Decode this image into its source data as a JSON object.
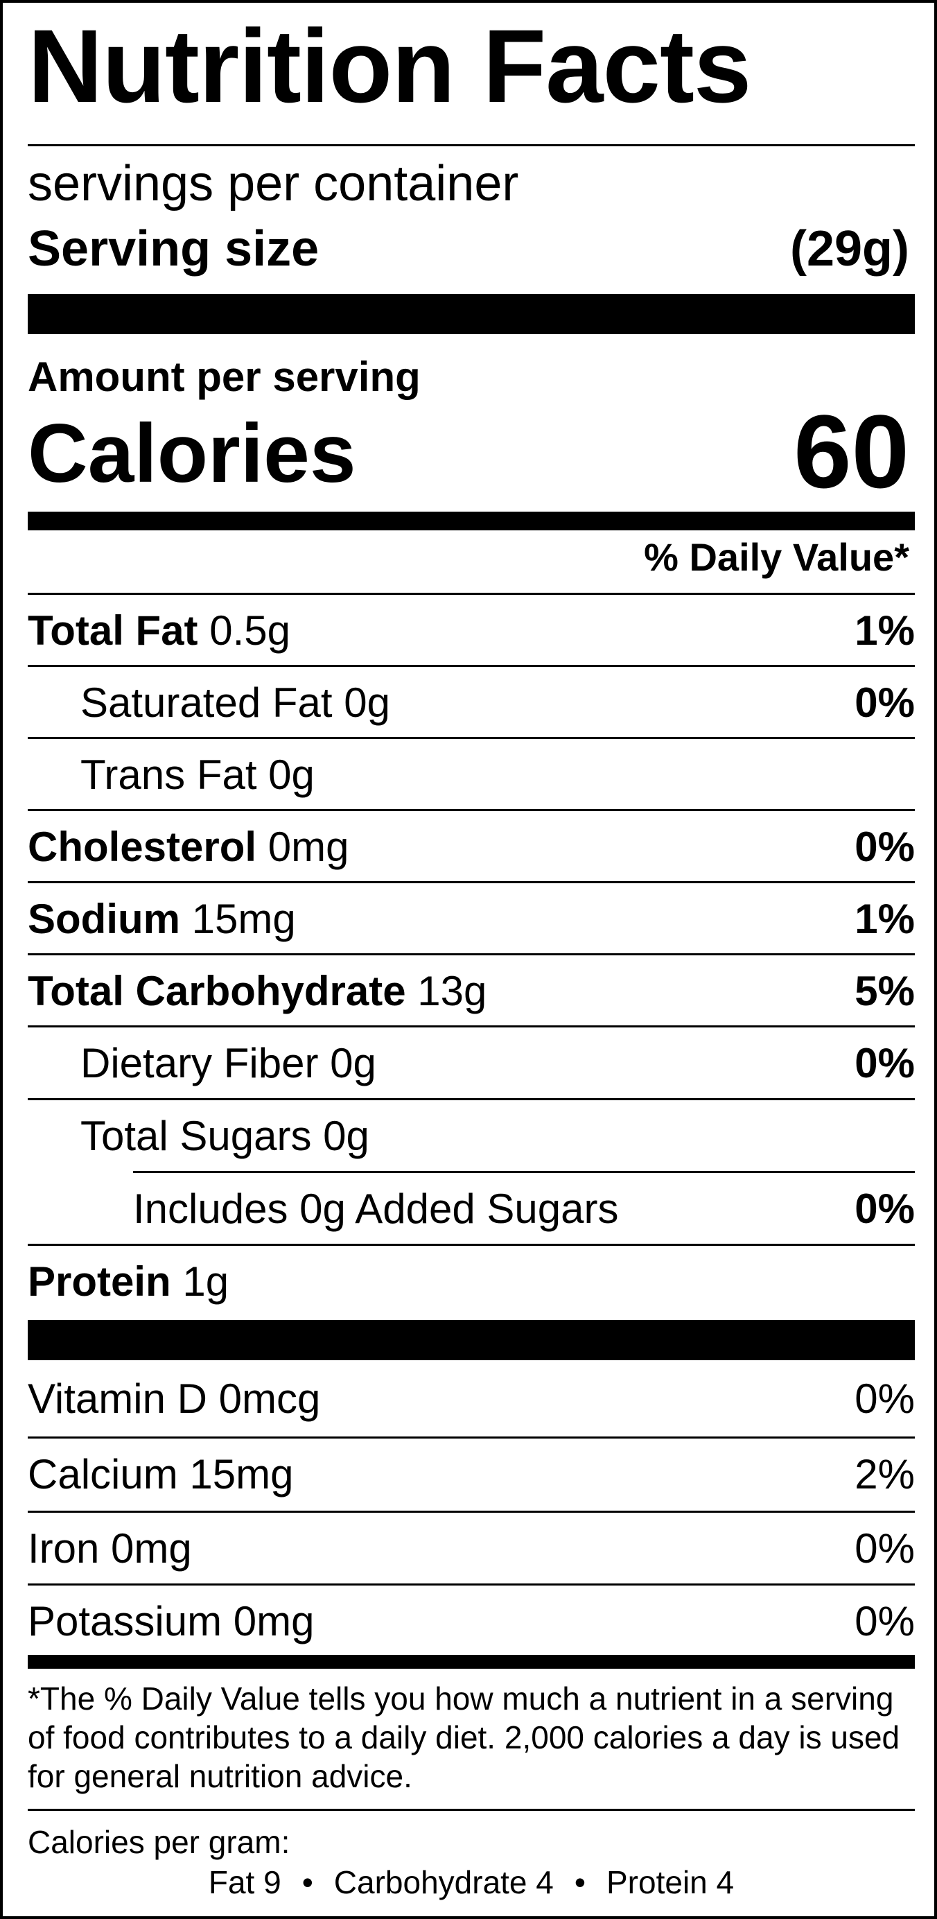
{
  "title": "Nutrition Facts",
  "servings_per_container": "servings per container",
  "serving_size": {
    "label": "Serving size",
    "value": "(29g)"
  },
  "amount_per_serving": "Amount per serving",
  "calories": {
    "label": "Calories",
    "value": "60"
  },
  "daily_value_header": "% Daily Value*",
  "nutrients": [
    {
      "name": "Total Fat",
      "amount": " 0.5g",
      "pct": "1%"
    },
    {
      "name": "Saturated Fat",
      "amount": " 0g",
      "pct": "0%"
    },
    {
      "name": "Trans Fat",
      "amount": " 0g",
      "pct": ""
    },
    {
      "name": "Cholesterol",
      "amount": " 0mg",
      "pct": "0%"
    },
    {
      "name": "Sodium",
      "amount": " 15mg",
      "pct": "1%"
    },
    {
      "name": "Total Carbohydrate",
      "amount": " 13g",
      "pct": "5%"
    },
    {
      "name": "Dietary Fiber",
      "amount": " 0g",
      "pct": "0%"
    },
    {
      "name": "Total Sugars",
      "amount": " 0g",
      "pct": ""
    },
    {
      "name": "Includes 0g Added Sugars",
      "amount": "",
      "pct": "0%"
    },
    {
      "name": "Protein",
      "amount": " 1g",
      "pct": ""
    }
  ],
  "vitamins": [
    {
      "label": "Vitamin D 0mcg",
      "pct": "0%"
    },
    {
      "label": "Calcium 15mg",
      "pct": "2%"
    },
    {
      "label": "Iron 0mg",
      "pct": "0%"
    },
    {
      "label": "Potassium 0mg",
      "pct": "0%"
    }
  ],
  "footnote": "*The % Daily Value tells you how much a nutrient in a serving of food contributes to a daily diet. 2,000 calories a day is used for general nutrition advice.",
  "calories_per_gram": {
    "label": "Calories per gram:",
    "fat": "Fat 9",
    "carbohydrate": "Carbohydrate 4",
    "protein": "Protein 4",
    "separator": "•"
  }
}
